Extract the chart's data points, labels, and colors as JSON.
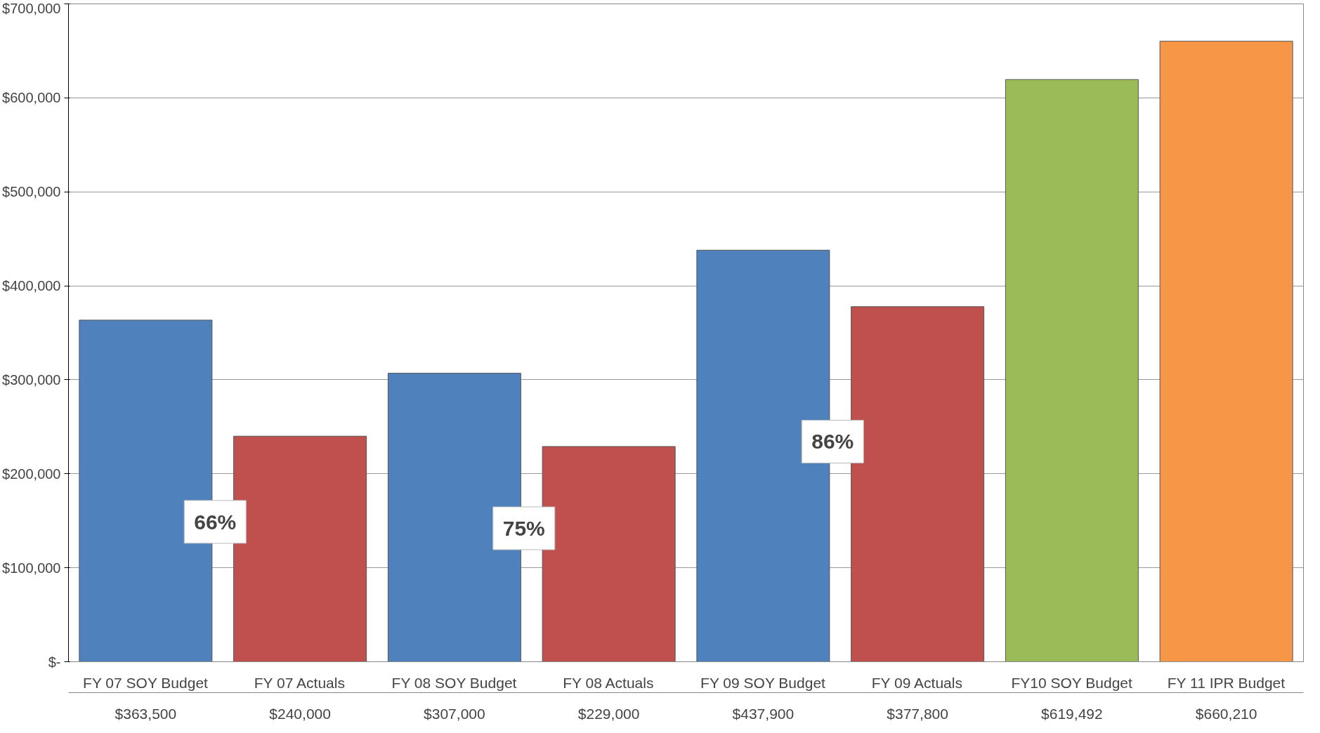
{
  "chart_data": {
    "type": "bar",
    "categories": [
      "FY 07 SOY Budget",
      "FY 07 Actuals",
      "FY 08 SOY Budget",
      "FY 08 Actuals",
      "FY 09 SOY Budget",
      "FY 09 Actuals",
      "FY10 SOY Budget",
      "FY 11 IPR Budget"
    ],
    "values": [
      363500,
      240000,
      307000,
      229000,
      437900,
      377800,
      619492,
      660210
    ],
    "value_labels": [
      "$363,500",
      "$240,000",
      "$307,000",
      "$229,000",
      "$437,900",
      "$377,800",
      "$619,492",
      "$660,210"
    ],
    "colors": [
      "#4f81bd",
      "#c0504d",
      "#4f81bd",
      "#c0504d",
      "#4f81bd",
      "#c0504d",
      "#9bbb59",
      "#f79646"
    ],
    "ylim": [
      0,
      700000
    ],
    "yticks": [
      {
        "value": 0,
        "label": "$-"
      },
      {
        "value": 100000,
        "label": "$100,000"
      },
      {
        "value": 200000,
        "label": "$200,000"
      },
      {
        "value": 300000,
        "label": "$300,000"
      },
      {
        "value": 400000,
        "label": "$400,000"
      },
      {
        "value": 500000,
        "label": "$500,000"
      },
      {
        "value": 600000,
        "label": "$600,000"
      },
      {
        "value": 700000,
        "label": "$700,000"
      }
    ],
    "grid": "y",
    "annotations": [
      "66%",
      "75%",
      "86%"
    ]
  }
}
